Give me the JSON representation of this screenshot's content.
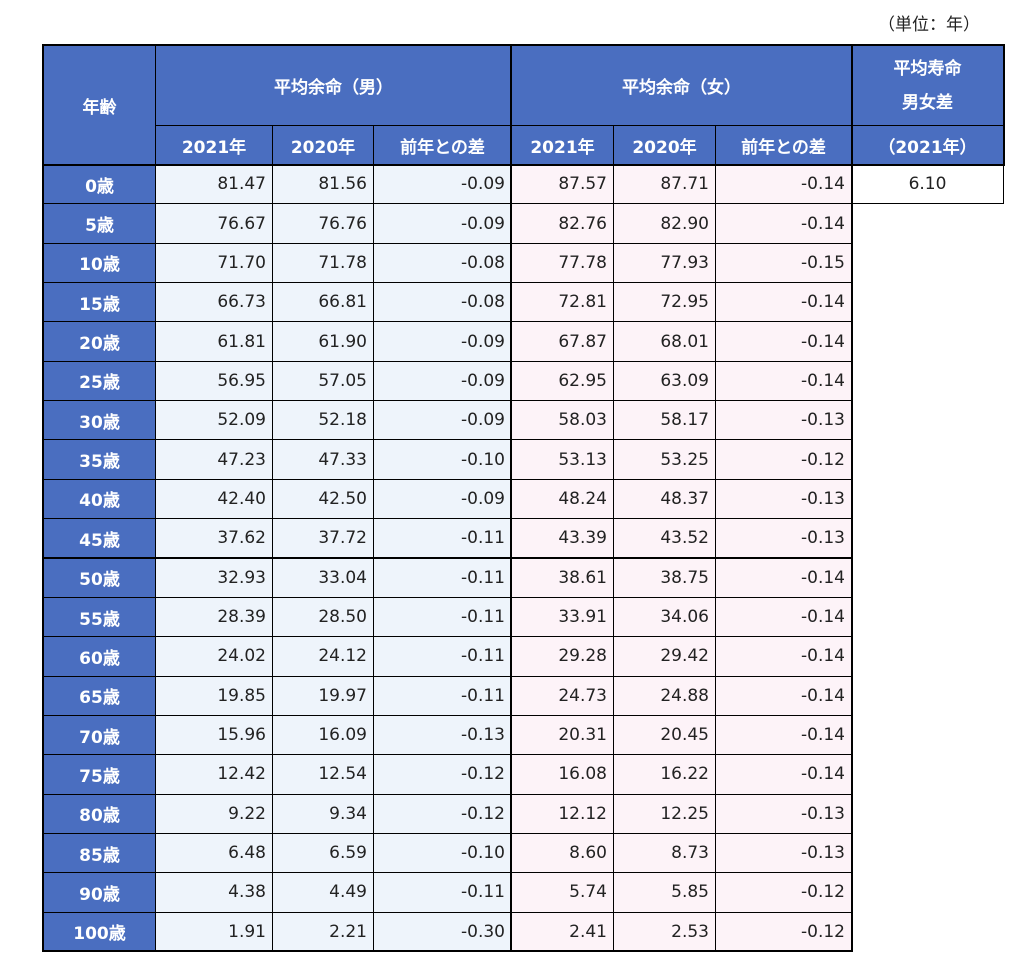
{
  "unit": "（単位：年）",
  "header": {
    "age": "年齢",
    "male": "平均余命（男）",
    "female": "平均余命（女）",
    "male_columns": [
      "2021年",
      "2020年",
      "前年との差"
    ],
    "female_columns": [
      "2021年",
      "2020年",
      "前年との差"
    ],
    "gap_title": [
      "平均寿命",
      "男女差"
    ],
    "gap_year": "（2021年）"
  },
  "gap_value": "6.10",
  "rows": [
    [
      "0歳",
      "81.47",
      "81.56",
      "-0.09",
      "87.57",
      "87.71",
      "-0.14"
    ],
    [
      "5歳",
      "76.67",
      "76.76",
      "-0.09",
      "82.76",
      "82.90",
      "-0.14"
    ],
    [
      "10歳",
      "71.70",
      "71.78",
      "-0.08",
      "77.78",
      "77.93",
      "-0.15"
    ],
    [
      "15歳",
      "66.73",
      "66.81",
      "-0.08",
      "72.81",
      "72.95",
      "-0.14"
    ],
    [
      "20歳",
      "61.81",
      "61.90",
      "-0.09",
      "67.87",
      "68.01",
      "-0.14"
    ],
    [
      "25歳",
      "56.95",
      "57.05",
      "-0.09",
      "62.95",
      "63.09",
      "-0.14"
    ],
    [
      "30歳",
      "52.09",
      "52.18",
      "-0.09",
      "58.03",
      "58.17",
      "-0.13"
    ],
    [
      "35歳",
      "47.23",
      "47.33",
      "-0.10",
      "53.13",
      "53.25",
      "-0.12"
    ],
    [
      "40歳",
      "42.40",
      "42.50",
      "-0.09",
      "48.24",
      "48.37",
      "-0.13"
    ],
    [
      "45歳",
      "37.62",
      "37.72",
      "-0.11",
      "43.39",
      "43.52",
      "-0.13"
    ],
    [
      "50歳",
      "32.93",
      "33.04",
      "-0.11",
      "38.61",
      "38.75",
      "-0.14"
    ],
    [
      "55歳",
      "28.39",
      "28.50",
      "-0.11",
      "33.91",
      "34.06",
      "-0.14"
    ],
    [
      "60歳",
      "24.02",
      "24.12",
      "-0.11",
      "29.28",
      "29.42",
      "-0.14"
    ],
    [
      "65歳",
      "19.85",
      "19.97",
      "-0.11",
      "24.73",
      "24.88",
      "-0.14"
    ],
    [
      "70歳",
      "15.96",
      "16.09",
      "-0.13",
      "20.31",
      "20.45",
      "-0.14"
    ],
    [
      "75歳",
      "12.42",
      "12.54",
      "-0.12",
      "16.08",
      "16.22",
      "-0.14"
    ],
    [
      "80歳",
      "9.22",
      "9.34",
      "-0.12",
      "12.12",
      "12.25",
      "-0.13"
    ],
    [
      "85歳",
      "6.48",
      "6.59",
      "-0.10",
      "8.60",
      "8.73",
      "-0.13"
    ],
    [
      "90歳",
      "4.38",
      "4.49",
      "-0.11",
      "5.74",
      "5.85",
      "-0.12"
    ],
    [
      "100歳",
      "1.91",
      "2.21",
      "-0.30",
      "2.41",
      "2.53",
      "-0.12"
    ]
  ]
}
